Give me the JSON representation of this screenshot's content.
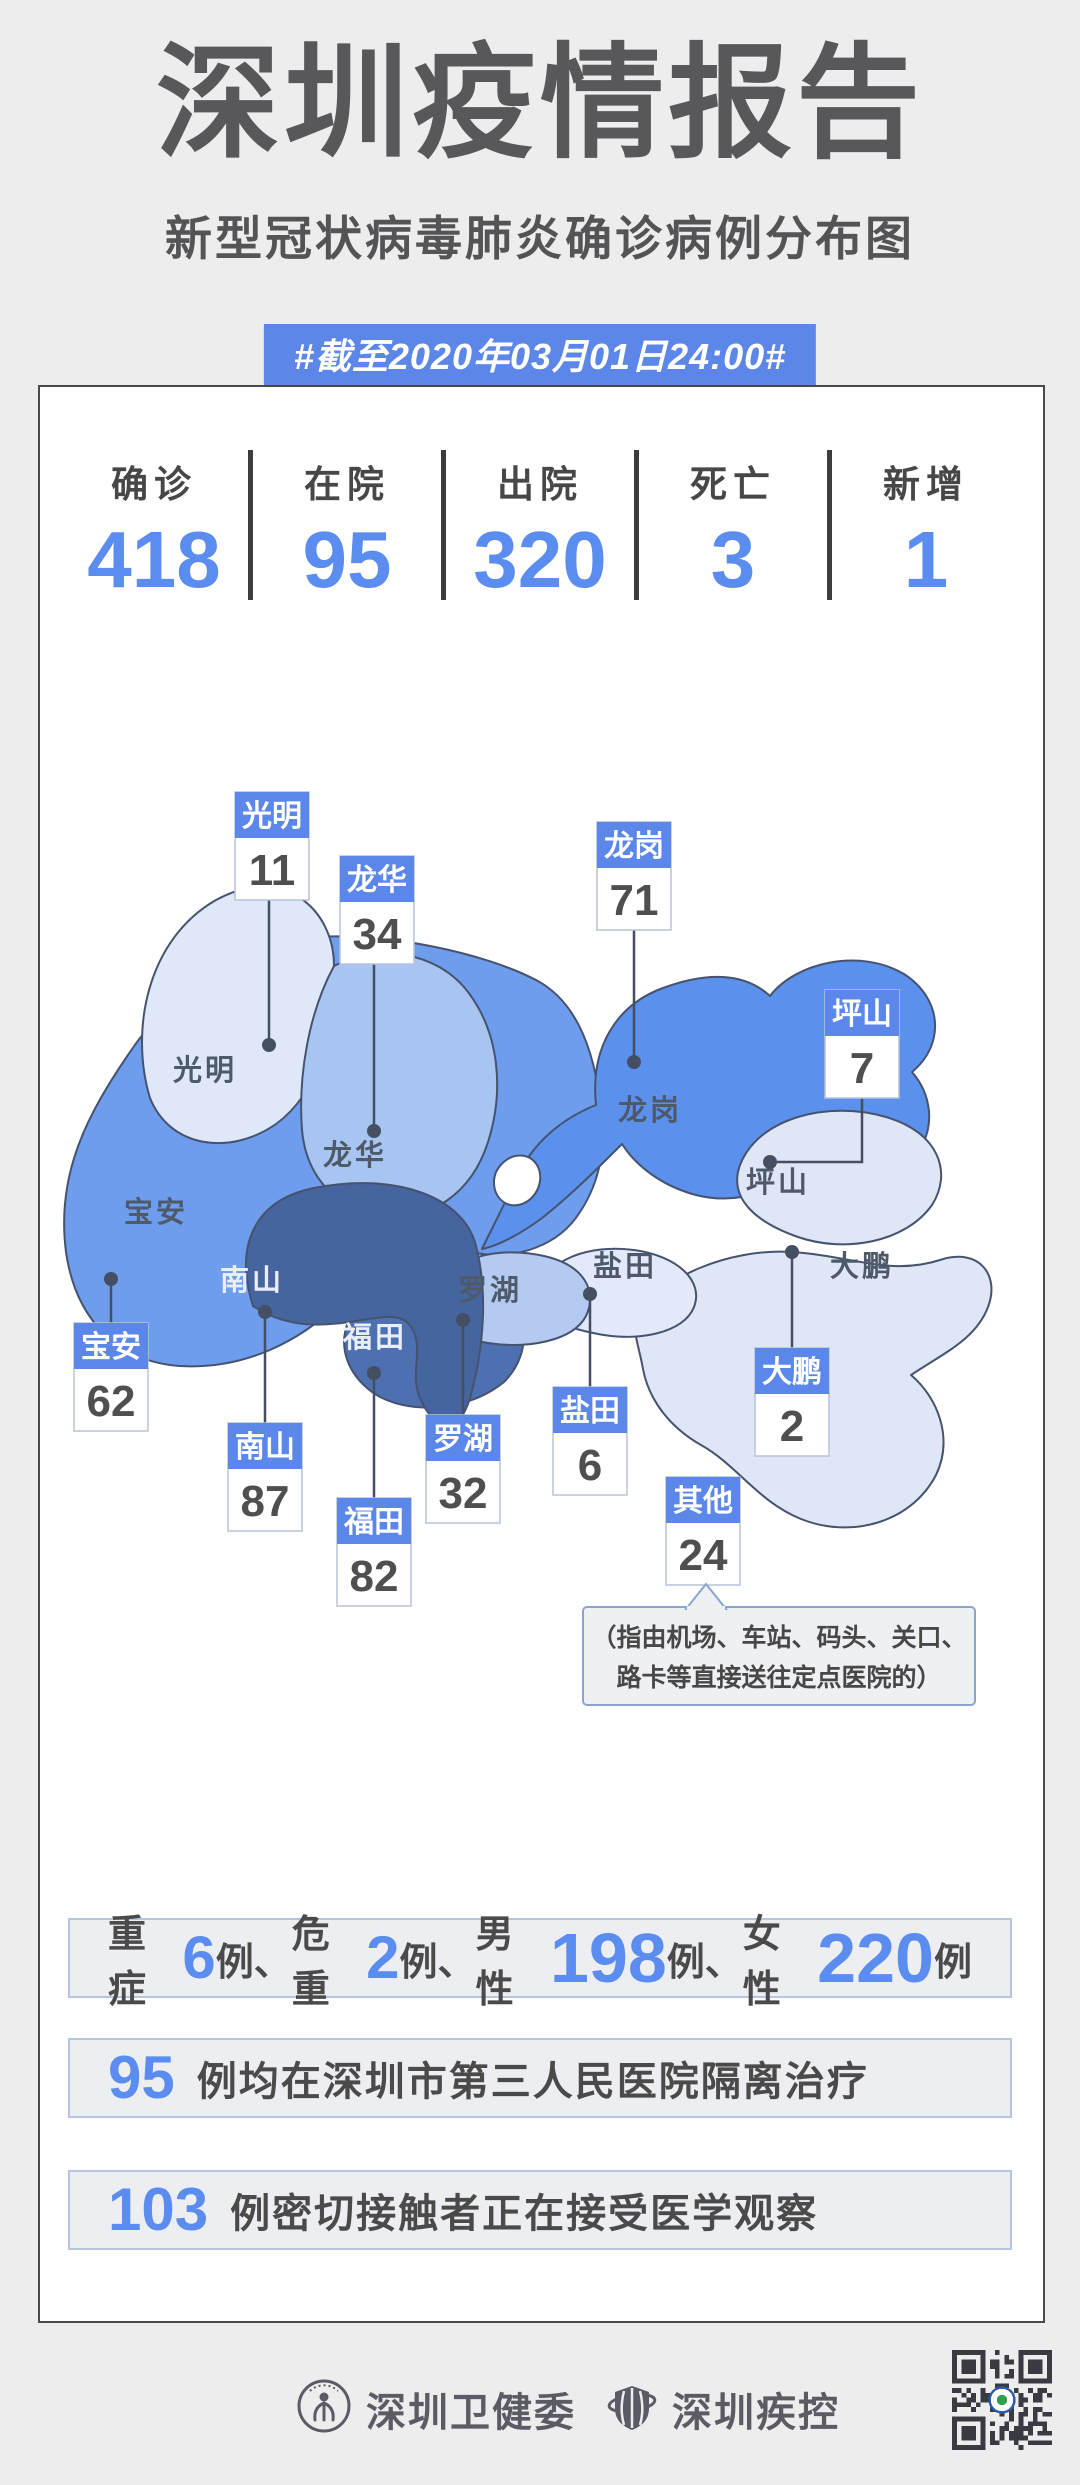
{
  "header": {
    "title": "深圳疫情报告",
    "subtitle": "新型冠状病毒肺炎确诊病例分布图",
    "date_badge": "#截至2020年03月01日24:00#"
  },
  "stats": [
    {
      "label": "确诊",
      "value": "418"
    },
    {
      "label": "在院",
      "value": "95"
    },
    {
      "label": "出院",
      "value": "320"
    },
    {
      "label": "死亡",
      "value": "3"
    },
    {
      "label": "新增",
      "value": "1"
    }
  ],
  "districts": [
    {
      "name": "光明",
      "value": "11"
    },
    {
      "name": "龙华",
      "value": "34"
    },
    {
      "name": "龙岗",
      "value": "71"
    },
    {
      "name": "坪山",
      "value": "7"
    },
    {
      "name": "宝安",
      "value": "62"
    },
    {
      "name": "南山",
      "value": "87"
    },
    {
      "name": "福田",
      "value": "82"
    },
    {
      "name": "罗湖",
      "value": "32"
    },
    {
      "name": "盐田",
      "value": "6"
    },
    {
      "name": "大鹏",
      "value": "2"
    },
    {
      "name": "其他",
      "value": "24"
    }
  ],
  "other_note": {
    "line1": "（指由机场、车站、码头、关口、",
    "line2": "路卡等直接送往定点医院的）"
  },
  "summary": {
    "bar1": [
      {
        "t": "重症"
      },
      {
        "t": "6"
      },
      {
        "t": "例、"
      },
      {
        "t": "危重"
      },
      {
        "t": "2"
      },
      {
        "t": "例、"
      },
      {
        "t": "男性"
      },
      {
        "t": "198"
      },
      {
        "t": "例、"
      },
      {
        "t": "女性"
      },
      {
        "t": "220"
      },
      {
        "t": "例"
      }
    ],
    "bar2": {
      "value": "95",
      "text": "例均在深圳市第三人民医院隔离治疗"
    },
    "bar3": {
      "value": "103",
      "text": "例密切接触者正在接受医学观察"
    }
  },
  "footer": {
    "org1": "深圳卫健委",
    "org2": "深圳疾控"
  },
  "colors": {
    "accent": "#5b8cef",
    "badge": "#5c86e8",
    "flag_header": "#5c87ea",
    "baoan": "#6f9ded",
    "guangming": "#dfe8f8",
    "longhua": "#a8c5f1",
    "longgang": "#5b90ec",
    "nanshan": "#46649e",
    "futian": "#4c70b0",
    "luohu": "#b4caf0",
    "yantian": "#e2e9f8",
    "pingshan": "#dfe7f7",
    "dapeng": "#dfe7f7"
  }
}
